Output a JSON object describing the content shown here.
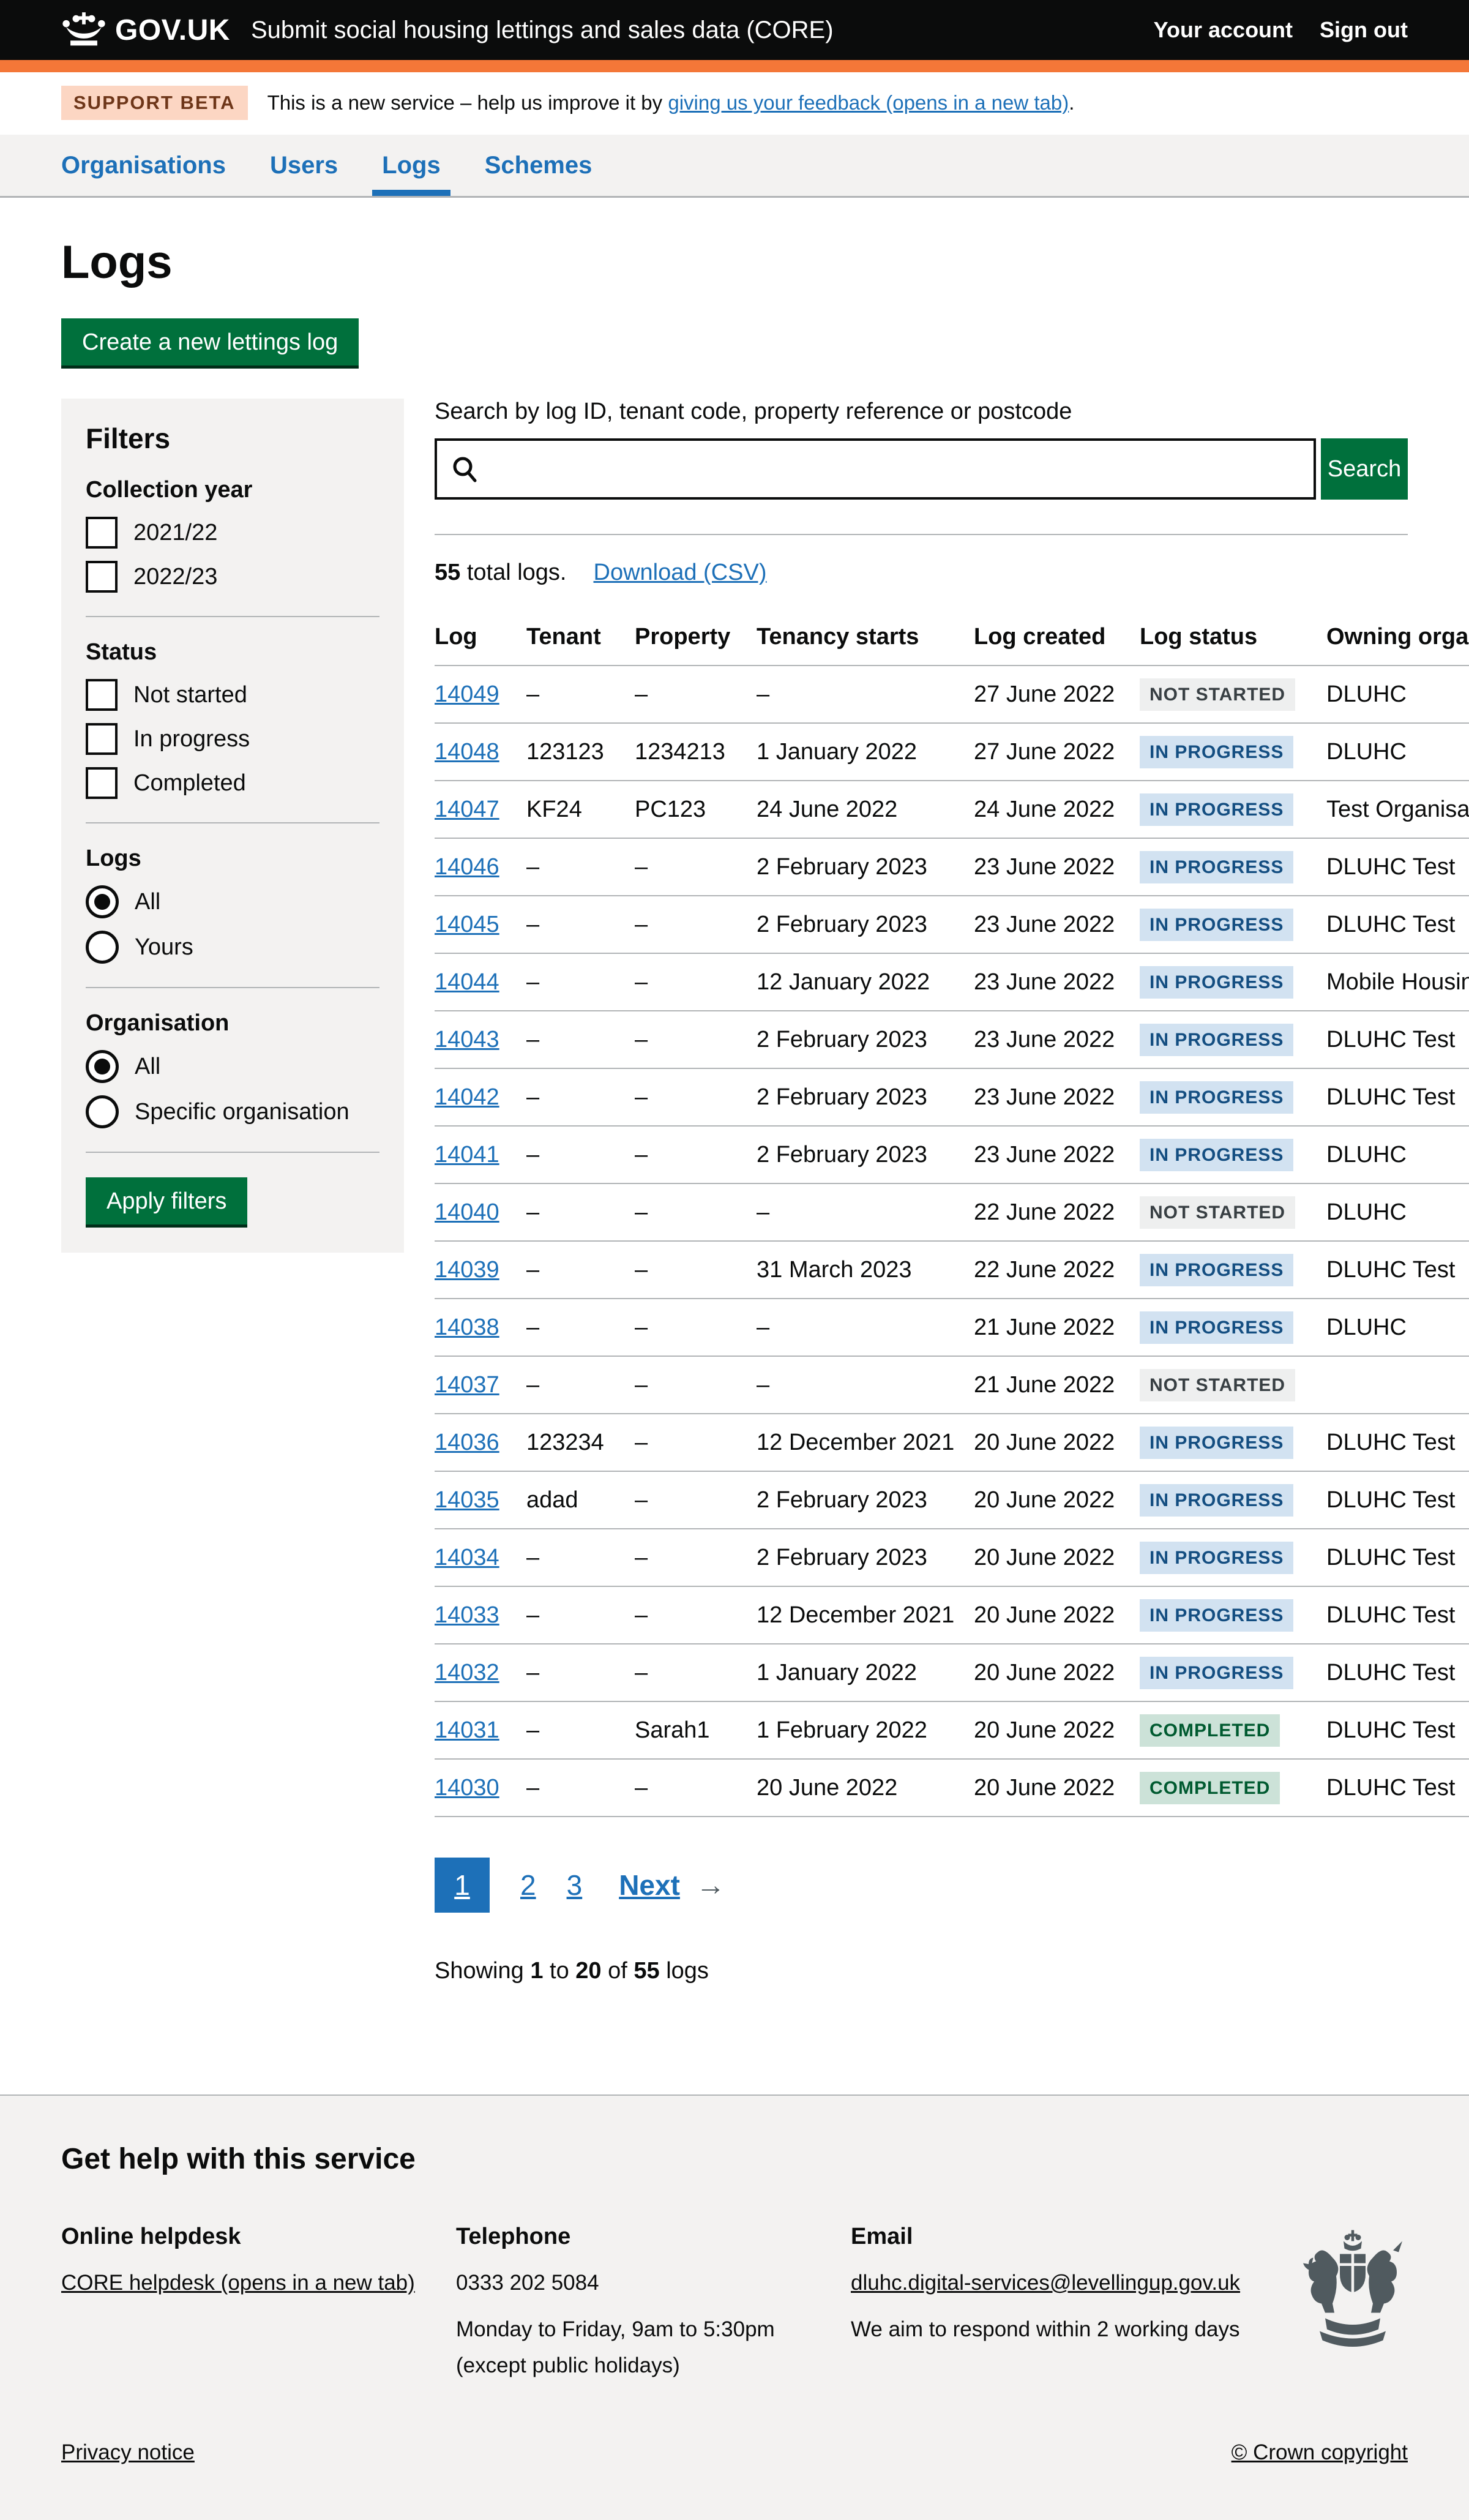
{
  "colors": {
    "brand_black": "#0b0c0c",
    "orange_bar": "#f47738",
    "link_blue": "#1d70b8",
    "button_green": "#00703c",
    "panel_grey": "#f3f2f1",
    "border_grey": "#b1b4b6",
    "tag_blue_bg": "#d2e2f1",
    "tag_blue_text": "#144e81",
    "tag_grey_bg": "#eeefef",
    "tag_grey_text": "#383f43",
    "tag_green_bg": "#cce2d8",
    "tag_green_text": "#005a30",
    "beta_tag_bg": "#fcd6c3",
    "beta_tag_text": "#6e3619"
  },
  "header": {
    "logo": "GOV.UK",
    "service_name": "Submit social housing lettings and sales data (CORE)",
    "account_link": "Your account",
    "signout_link": "Sign out"
  },
  "phase_banner": {
    "tag": "SUPPORT BETA",
    "text": "This is a new service – help us improve it by",
    "link": "giving us your feedback (opens in a new tab)",
    "suffix": "."
  },
  "nav": {
    "items": [
      {
        "label": "Organisations",
        "active": false
      },
      {
        "label": "Users",
        "active": false
      },
      {
        "label": "Logs",
        "active": true
      },
      {
        "label": "Schemes",
        "active": false
      }
    ]
  },
  "page": {
    "title": "Logs",
    "create_button": "Create a new lettings log"
  },
  "filters": {
    "heading": "Filters",
    "apply_button": "Apply filters",
    "groups": [
      {
        "label": "Collection year",
        "type": "checkbox",
        "options": [
          {
            "label": "2021/22",
            "checked": false
          },
          {
            "label": "2022/23",
            "checked": false
          }
        ]
      },
      {
        "label": "Status",
        "type": "checkbox",
        "options": [
          {
            "label": "Not started",
            "checked": false
          },
          {
            "label": "In progress",
            "checked": false
          },
          {
            "label": "Completed",
            "checked": false
          }
        ]
      },
      {
        "label": "Logs",
        "type": "radio",
        "options": [
          {
            "label": "All",
            "checked": true
          },
          {
            "label": "Yours",
            "checked": false
          }
        ]
      },
      {
        "label": "Organisation",
        "type": "radio",
        "options": [
          {
            "label": "All",
            "checked": true
          },
          {
            "label": "Specific organisation",
            "checked": false
          }
        ]
      }
    ]
  },
  "search": {
    "label": "Search by log ID, tenant code, property reference or postcode",
    "value": "",
    "placeholder": "",
    "button": "Search"
  },
  "results": {
    "count": "55",
    "count_suffix": " total logs.",
    "download_link": "Download (CSV)"
  },
  "table": {
    "columns": [
      "Log",
      "Tenant",
      "Property",
      "Tenancy starts",
      "Log created",
      "Log status",
      "Owning organisation"
    ],
    "rows": [
      {
        "log": "14049",
        "tenant": "–",
        "property": "–",
        "tenancy_starts": "–",
        "log_created": "27 June 2022",
        "status": "NOT STARTED",
        "status_type": "grey",
        "owning_org": "DLUHC"
      },
      {
        "log": "14048",
        "tenant": "123123",
        "property": "1234213",
        "tenancy_starts": "1 January 2022",
        "log_created": "27 June 2022",
        "status": "IN PROGRESS",
        "status_type": "blue",
        "owning_org": "DLUHC"
      },
      {
        "log": "14047",
        "tenant": "KF24",
        "property": "PC123",
        "tenancy_starts": "24 June 2022",
        "log_created": "24 June 2022",
        "status": "IN PROGRESS",
        "status_type": "blue",
        "owning_org": "Test Organisation"
      },
      {
        "log": "14046",
        "tenant": "–",
        "property": "–",
        "tenancy_starts": "2 February 2023",
        "log_created": "23 June 2022",
        "status": "IN PROGRESS",
        "status_type": "blue",
        "owning_org": "DLUHC Test"
      },
      {
        "log": "14045",
        "tenant": "–",
        "property": "–",
        "tenancy_starts": "2 February 2023",
        "log_created": "23 June 2022",
        "status": "IN PROGRESS",
        "status_type": "blue",
        "owning_org": "DLUHC Test"
      },
      {
        "log": "14044",
        "tenant": "–",
        "property": "–",
        "tenancy_starts": "12 January 2022",
        "log_created": "23 June 2022",
        "status": "IN PROGRESS",
        "status_type": "blue",
        "owning_org": "Mobile Housing"
      },
      {
        "log": "14043",
        "tenant": "–",
        "property": "–",
        "tenancy_starts": "2 February 2023",
        "log_created": "23 June 2022",
        "status": "IN PROGRESS",
        "status_type": "blue",
        "owning_org": "DLUHC Test"
      },
      {
        "log": "14042",
        "tenant": "–",
        "property": "–",
        "tenancy_starts": "2 February 2023",
        "log_created": "23 June 2022",
        "status": "IN PROGRESS",
        "status_type": "blue",
        "owning_org": "DLUHC Test"
      },
      {
        "log": "14041",
        "tenant": "–",
        "property": "–",
        "tenancy_starts": "2 February 2023",
        "log_created": "23 June 2022",
        "status": "IN PROGRESS",
        "status_type": "blue",
        "owning_org": "DLUHC"
      },
      {
        "log": "14040",
        "tenant": "–",
        "property": "–",
        "tenancy_starts": "–",
        "log_created": "22 June 2022",
        "status": "NOT STARTED",
        "status_type": "grey",
        "owning_org": "DLUHC"
      },
      {
        "log": "14039",
        "tenant": "–",
        "property": "–",
        "tenancy_starts": "31 March 2023",
        "log_created": "22 June 2022",
        "status": "IN PROGRESS",
        "status_type": "blue",
        "owning_org": "DLUHC Test"
      },
      {
        "log": "14038",
        "tenant": "–",
        "property": "–",
        "tenancy_starts": "–",
        "log_created": "21 June 2022",
        "status": "IN PROGRESS",
        "status_type": "blue",
        "owning_org": "DLUHC"
      },
      {
        "log": "14037",
        "tenant": "–",
        "property": "–",
        "tenancy_starts": "–",
        "log_created": "21 June 2022",
        "status": "NOT STARTED",
        "status_type": "grey",
        "owning_org": ""
      },
      {
        "log": "14036",
        "tenant": "123234",
        "property": "–",
        "tenancy_starts": "12 December 2021",
        "log_created": "20 June 2022",
        "status": "IN PROGRESS",
        "status_type": "blue",
        "owning_org": "DLUHC Test"
      },
      {
        "log": "14035",
        "tenant": "adad",
        "property": "–",
        "tenancy_starts": "2 February 2023",
        "log_created": "20 June 2022",
        "status": "IN PROGRESS",
        "status_type": "blue",
        "owning_org": "DLUHC Test"
      },
      {
        "log": "14034",
        "tenant": "–",
        "property": "–",
        "tenancy_starts": "2 February 2023",
        "log_created": "20 June 2022",
        "status": "IN PROGRESS",
        "status_type": "blue",
        "owning_org": "DLUHC Test"
      },
      {
        "log": "14033",
        "tenant": "–",
        "property": "–",
        "tenancy_starts": "12 December 2021",
        "log_created": "20 June 2022",
        "status": "IN PROGRESS",
        "status_type": "blue",
        "owning_org": "DLUHC Test"
      },
      {
        "log": "14032",
        "tenant": "–",
        "property": "–",
        "tenancy_starts": "1 January 2022",
        "log_created": "20 June 2022",
        "status": "IN PROGRESS",
        "status_type": "blue",
        "owning_org": "DLUHC Test"
      },
      {
        "log": "14031",
        "tenant": "–",
        "property": "Sarah1",
        "tenancy_starts": "1 February 2022",
        "log_created": "20 June 2022",
        "status": "COMPLETED",
        "status_type": "green",
        "owning_org": "DLUHC Test"
      },
      {
        "log": "14030",
        "tenant": "–",
        "property": "–",
        "tenancy_starts": "20 June 2022",
        "log_created": "20 June 2022",
        "status": "COMPLETED",
        "status_type": "green",
        "owning_org": "DLUHC Test"
      }
    ]
  },
  "pagination": {
    "current": "1",
    "pages": [
      "2",
      "3"
    ],
    "next_label": "Next",
    "arrow": "→"
  },
  "showing": {
    "prefix": "Showing ",
    "from": "1",
    "mid1": " to ",
    "to": "20",
    "mid2": " of ",
    "total": "55",
    "suffix": " logs"
  },
  "footer": {
    "heading": "Get help with this service",
    "columns": [
      {
        "title": "Online helpdesk",
        "link": "CORE helpdesk (opens in a new tab)",
        "lines": []
      },
      {
        "title": "Telephone",
        "link": "",
        "lines": [
          "0333 202 5084",
          "Monday to Friday, 9am to 5:30pm",
          "(except public holidays)"
        ]
      },
      {
        "title": "Email",
        "link": "dluhc.digital-services@levellingup.gov.uk",
        "lines": [
          "We aim to respond within 2 working days"
        ]
      }
    ],
    "privacy_link": "Privacy notice",
    "copyright_link": "© Crown copyright"
  }
}
